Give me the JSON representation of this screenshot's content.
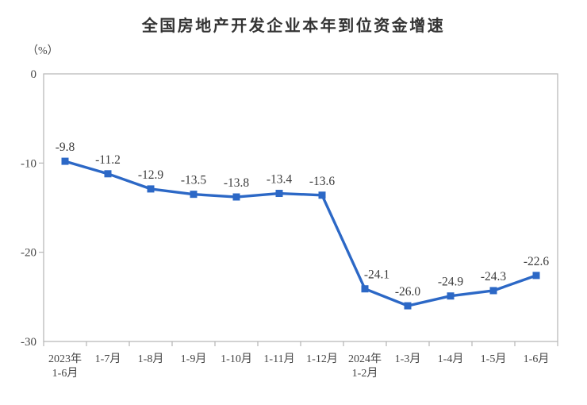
{
  "header": {
    "title": "全国房地产开发企业本年到位资金增速"
  },
  "chart_data": {
    "type": "line",
    "title": "全国房地产开发企业本年到位资金增速",
    "unit_label": "（%）",
    "categories": [
      "2023年\n1-6月",
      "1-7月",
      "1-8月",
      "1-9月",
      "1-10月",
      "1-11月",
      "1-12月",
      "2024年\n1-2月",
      "1-3月",
      "1-4月",
      "1-5月",
      "1-6月"
    ],
    "values": [
      -9.8,
      -11.2,
      -12.9,
      -13.5,
      -13.8,
      -13.4,
      -13.6,
      -24.1,
      -26.0,
      -24.9,
      -24.3,
      -22.6
    ],
    "data_labels": [
      "-9.8",
      "-11.2",
      "-12.9",
      "-13.5",
      "-13.8",
      "-13.4",
      "-13.6",
      "-24.1",
      "-26.0",
      "-24.9",
      "-24.3",
      "-22.6"
    ],
    "xlabel": "",
    "ylabel": "（%）",
    "ylim": [
      -30,
      0
    ],
    "yticks": [
      0,
      -10,
      -20,
      -30
    ],
    "grid": false,
    "legend": false,
    "marker": "square",
    "line_color": "#2c68c6",
    "marker_color": "#2c68c6",
    "label_color": "#3b3b3b",
    "axis_color": "#b5b5b5",
    "tick_label_color": "#454545",
    "label_dx": [
      0,
      0,
      0,
      0,
      0,
      0,
      0,
      15,
      0,
      0,
      0,
      0
    ]
  }
}
